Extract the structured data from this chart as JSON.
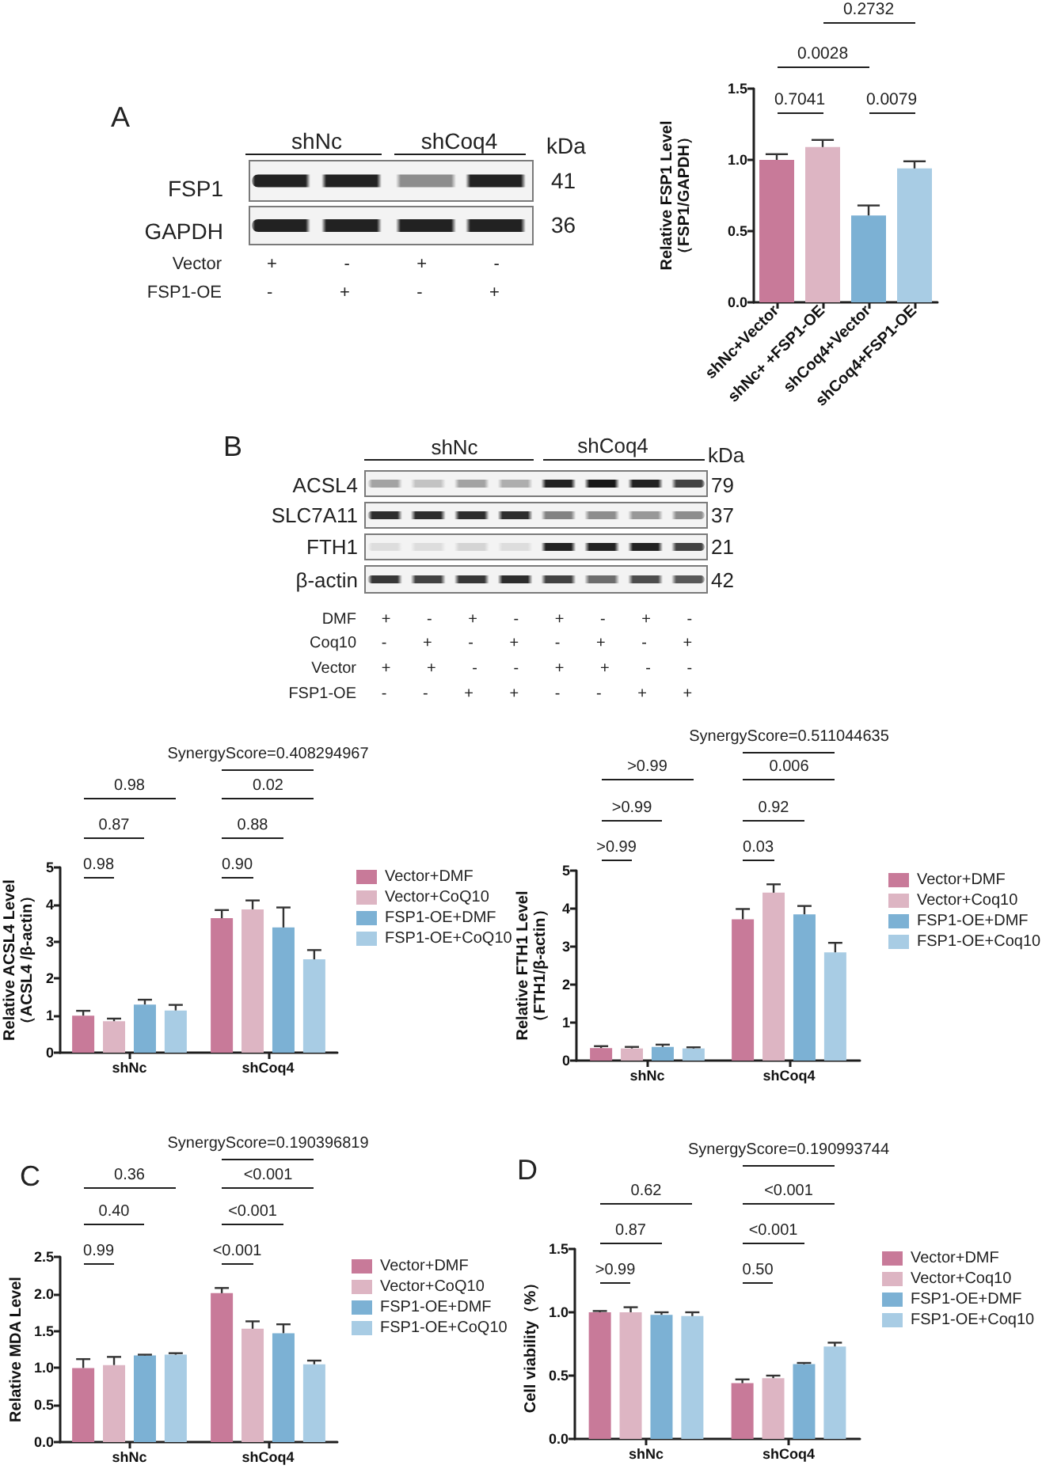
{
  "chart_data": [
    {
      "type": "other",
      "annotations": [
        "A",
        "shNc",
        "shCoq4",
        "kDa",
        "FSP1",
        "41",
        "GAPDH",
        "36",
        "Vector",
        "+ - + -",
        "FSP1-OE",
        "- + - +"
      ]
    },
    {
      "type": "bar",
      "categories": [
        "shNc+Vector",
        "shNc+ +FSP1-OE",
        "shCoq4+Vector",
        "shCoq4+FSP1-OE"
      ],
      "values": [
        1.0,
        1.09,
        0.61,
        0.94
      ],
      "errors": [
        0.04,
        0.05,
        0.07,
        0.05
      ],
      "colors": [
        "#c87a99",
        "#ddb5c3",
        "#7cb1d4",
        "#a8cce4"
      ],
      "ylabel": "Relative FSP1 Level\n（FSP1/GAPDH）",
      "ylim": [
        0,
        1.5
      ],
      "yticks": [
        {
          "value": 0,
          "label": "0.0"
        },
        0.5,
        {
          "value": 1,
          "label": "1.0"
        },
        1.5
      ],
      "annotations": [
        "0.2732",
        "0.0028",
        "0.7041",
        "0.0079"
      ]
    },
    {
      "type": "other",
      "annotations": [
        "B",
        "shNc",
        "shCoq4",
        "kDa",
        "ACSL4",
        "79",
        "SLC7A11",
        "37",
        "FTH1",
        "21",
        "β-actin",
        "42",
        "DMF",
        "+ - + - + - + -",
        "Coq10",
        "- + - + - + - +",
        "Vector",
        "+ + - - + + - -",
        "FSP1-OE",
        "- - + + - - + +"
      ]
    },
    {
      "type": "bar",
      "categories": [
        "shNc",
        "shCoq4"
      ],
      "series": [
        {
          "name": "Vector+DMF",
          "color": "#c87a99",
          "values": [
            1.0,
            3.63
          ],
          "errors": [
            0.13,
            0.22
          ]
        },
        {
          "name": "Vector+CoQ10",
          "color": "#ddb5c3",
          "values": [
            0.85,
            3.87
          ],
          "errors": [
            0.07,
            0.24
          ]
        },
        {
          "name": "FSP1-OE+DMF",
          "color": "#7cb1d4",
          "values": [
            1.3,
            3.38
          ],
          "errors": [
            0.13,
            0.54
          ]
        },
        {
          "name": "FSP1-OE+CoQ10",
          "color": "#a8cce4",
          "values": [
            1.14,
            2.52
          ],
          "errors": [
            0.15,
            0.25
          ]
        }
      ],
      "ylabel": "Relative ACSL4 Level\n（ACSL4 /β-actin）",
      "ylim": [
        0,
        5
      ],
      "yticks": [
        0,
        1,
        2,
        3,
        4,
        5
      ],
      "legend": "right",
      "annotations": [
        "SynergyScore=0.408294967",
        "0.98",
        "0.02",
        "0.87",
        "0.88",
        "0.98",
        "0.90"
      ]
    },
    {
      "type": "bar",
      "categories": [
        "shNc",
        "shCoq4"
      ],
      "series": [
        {
          "name": "Vector+DMF",
          "color": "#c87a99",
          "values": [
            0.33,
            3.72
          ],
          "errors": [
            0.05,
            0.27
          ]
        },
        {
          "name": "Vector+Coq10",
          "color": "#ddb5c3",
          "values": [
            0.32,
            4.42
          ],
          "errors": [
            0.04,
            0.22
          ]
        },
        {
          "name": "FSP1-OE+DMF",
          "color": "#7cb1d4",
          "values": [
            0.36,
            3.85
          ],
          "errors": [
            0.06,
            0.22
          ]
        },
        {
          "name": "FSP1-OE+Coq10",
          "color": "#a8cce4",
          "values": [
            0.32,
            2.85
          ],
          "errors": [
            0.03,
            0.25
          ]
        }
      ],
      "ylabel": "Relative FTH1 Level\n（FTH1/β-actin）",
      "ylim": [
        0,
        5
      ],
      "yticks": [
        0,
        1,
        2,
        3,
        4,
        5
      ],
      "legend": "right",
      "annotations": [
        "SynergyScore=0.511044635",
        ">0.99",
        "0.006",
        ">0.99",
        "0.92",
        ">0.99",
        "0.03"
      ]
    },
    {
      "type": "bar",
      "categories": [
        "shNc",
        "shCoq4"
      ],
      "series": [
        {
          "name": "Vector+DMF",
          "color": "#c87a99",
          "values": [
            1.0,
            2.01
          ],
          "errors": [
            0.12,
            0.07
          ]
        },
        {
          "name": "Vector+CoQ10",
          "color": "#ddb5c3",
          "values": [
            1.04,
            1.53
          ],
          "errors": [
            0.11,
            0.1
          ]
        },
        {
          "name": "FSP1-OE+DMF",
          "color": "#7cb1d4",
          "values": [
            1.17,
            1.47
          ],
          "errors": [
            0.01,
            0.12
          ]
        },
        {
          "name": "FSP1-OE+CoQ10",
          "color": "#a8cce4",
          "values": [
            1.18,
            1.05
          ],
          "errors": [
            0.02,
            0.05
          ]
        }
      ],
      "ylabel": "Relative MDA Level",
      "ylim": [
        0,
        2.5
      ],
      "yticks": [
        {
          "value": 0,
          "label": "0.0"
        },
        0.5,
        {
          "value": 1,
          "label": "1.0"
        },
        1.5,
        {
          "value": 2,
          "label": "2.0"
        },
        2.5
      ],
      "legend": "right",
      "annotations": [
        "C",
        "SynergyScore=0.190396819",
        "0.36",
        "<0.001",
        "0.40",
        "<0.001",
        "0.99",
        "<0.001"
      ]
    },
    {
      "type": "bar",
      "categories": [
        "shNc",
        "shCoq4"
      ],
      "series": [
        {
          "name": "Vector+DMF",
          "color": "#c87a99",
          "values": [
            1.0,
            0.44
          ],
          "errors": [
            0.01,
            0.03
          ]
        },
        {
          "name": "Vector+Coq10",
          "color": "#ddb5c3",
          "values": [
            1.0,
            0.48
          ],
          "errors": [
            0.04,
            0.02
          ]
        },
        {
          "name": "FSP1-OE+DMF",
          "color": "#7cb1d4",
          "values": [
            0.98,
            0.59
          ],
          "errors": [
            0.02,
            0.01
          ]
        },
        {
          "name": "FSP1-OE+Coq10",
          "color": "#a8cce4",
          "values": [
            0.97,
            0.73
          ],
          "errors": [
            0.03,
            0.03
          ]
        }
      ],
      "ylabel": "Cell viability（%）",
      "ylim": [
        0,
        1.5
      ],
      "yticks": [
        {
          "value": 0,
          "label": "0.0"
        },
        0.5,
        {
          "value": 1,
          "label": "1.0"
        },
        1.5
      ],
      "legend": "right",
      "annotations": [
        "D",
        "SynergyScore=0.190993744",
        "0.62",
        "<0.001",
        "0.87",
        "<0.001",
        ">0.99",
        "0.50"
      ]
    }
  ]
}
